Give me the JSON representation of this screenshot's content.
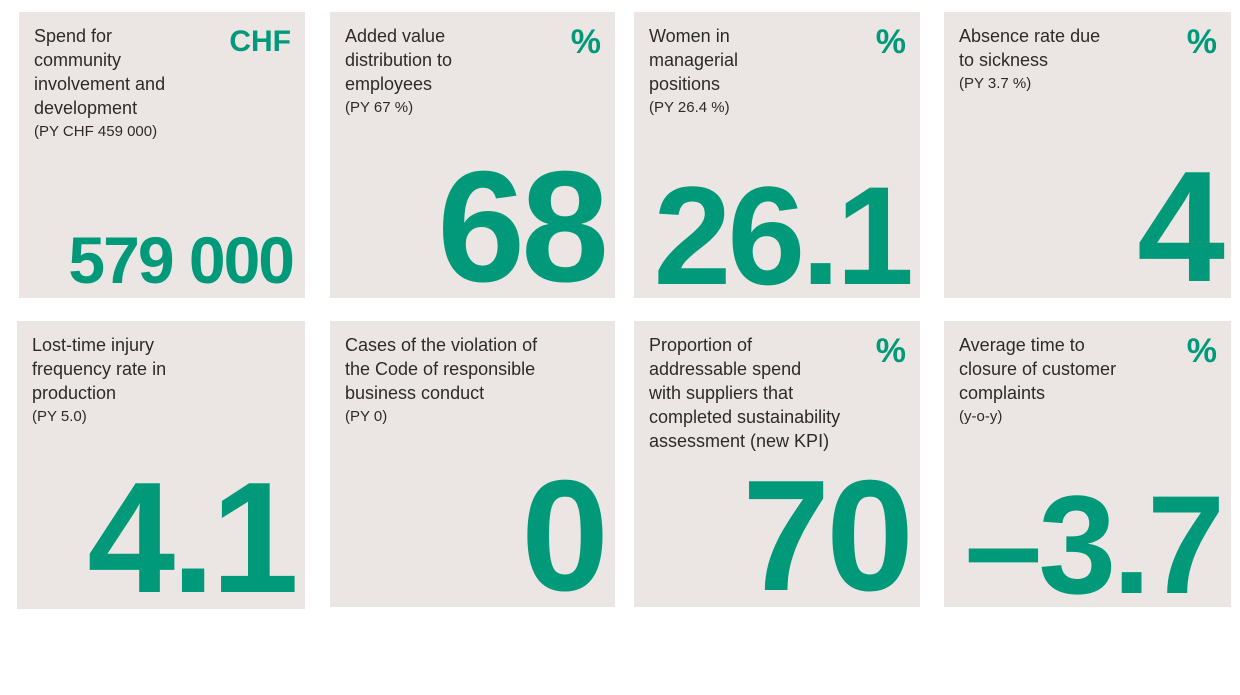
{
  "colors": {
    "accent": "#009a7a",
    "card_bg": "#ebe6e3",
    "text": "#2b2b2b"
  },
  "kpis": [
    {
      "label": "Spend for\ncommunity\ninvolvement and\ndevelopment",
      "py": "(PY CHF 459 000)",
      "unit": "CHF",
      "value": "579 000"
    },
    {
      "label": "Added value\ndistribution to\nemployees",
      "py": "(PY 67 %)",
      "unit": "%",
      "value": "68"
    },
    {
      "label": "Women in\nmanagerial\npositions",
      "py": "(PY 26.4 %)",
      "unit": "%",
      "value": "26.1"
    },
    {
      "label": "Absence rate due\nto sickness",
      "py": "(PY 3.7 %)",
      "unit": "%",
      "value": "4"
    },
    {
      "label": "Lost-time injury\nfrequency rate in\nproduction",
      "py": "(PY 5.0)",
      "unit": "",
      "value": "4.1"
    },
    {
      "label": "Cases of the violation of\nthe Code of responsible\nbusiness conduct",
      "py": "(PY 0)",
      "unit": "",
      "value": "0"
    },
    {
      "label": "Proportion of\naddressable spend\nwith suppliers that\ncompleted sustainability\nassessment (new KPI)",
      "py": "",
      "unit": "%",
      "value": "70"
    },
    {
      "label": "Average time to\nclosure of customer\ncomplaints",
      "py": "(y-o-y)",
      "unit": "%",
      "value": "–3.7"
    }
  ]
}
